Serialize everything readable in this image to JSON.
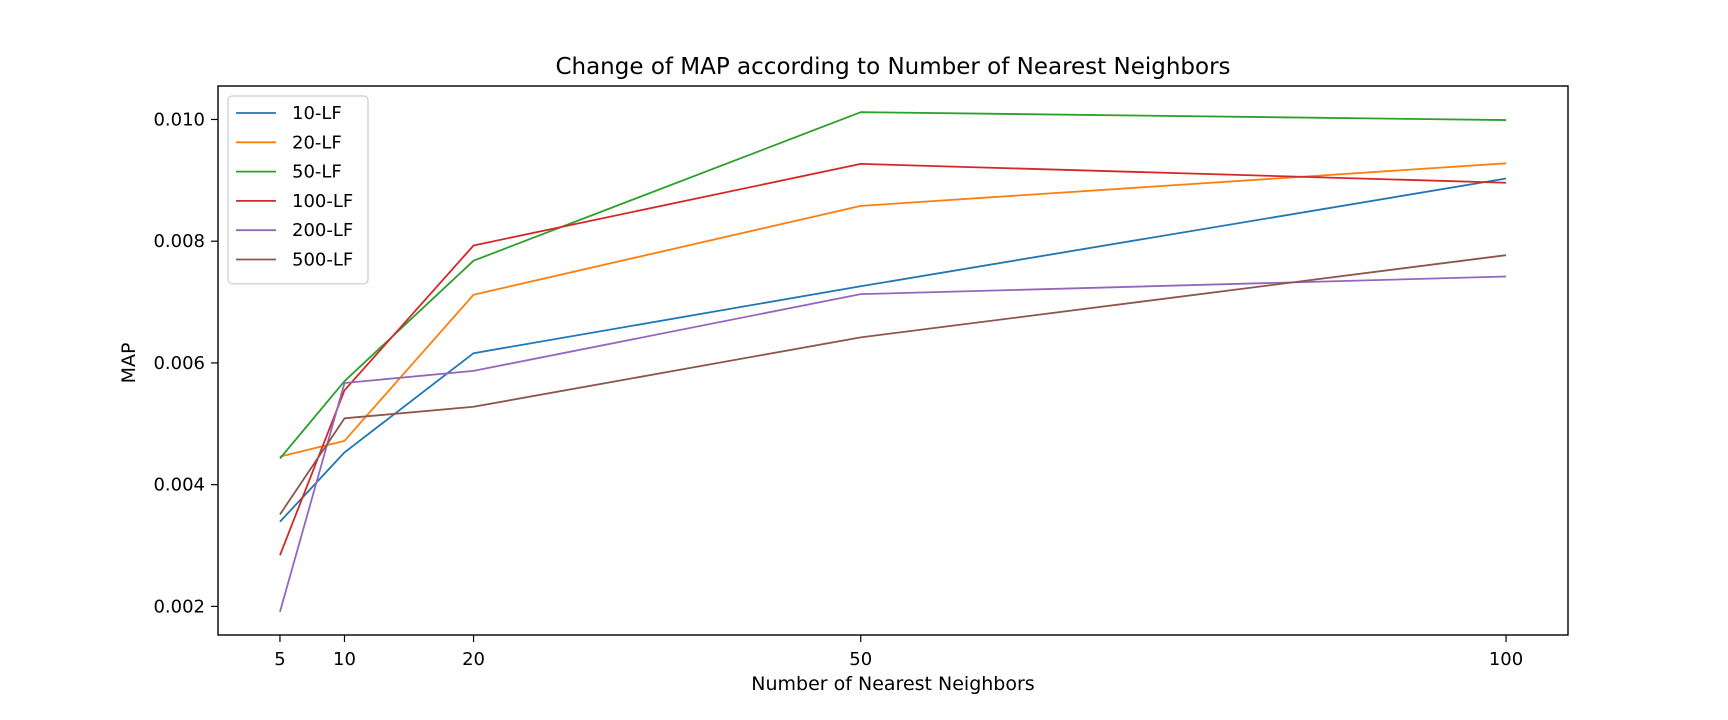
{
  "chart_data": {
    "type": "line",
    "title": "Change of MAP according to Number of Nearest Neighbors",
    "xlabel": "Number of Nearest Neighbors",
    "ylabel": "MAP",
    "x": [
      5,
      10,
      20,
      50,
      100
    ],
    "xticks": [
      5,
      10,
      20,
      50,
      100
    ],
    "xtick_labels": [
      "5",
      "10",
      "20",
      "50",
      "100"
    ],
    "yticks": [
      0.002,
      0.004,
      0.006,
      0.008,
      0.01
    ],
    "ytick_labels": [
      "0.002",
      "0.004",
      "0.006",
      "0.008",
      "0.010"
    ],
    "xlim": [
      0.2,
      104.8
    ],
    "ylim": [
      1.53,
      10.55
    ],
    "y_scale_factor": 0.001,
    "grid": false,
    "legend_position": "upper-left",
    "series": [
      {
        "name": "10-LF",
        "color": "#1f77b4",
        "values": [
          3.39,
          4.53,
          6.16,
          7.26,
          9.03
        ]
      },
      {
        "name": "20-LF",
        "color": "#ff7f0e",
        "values": [
          4.46,
          4.72,
          7.12,
          8.58,
          9.28
        ]
      },
      {
        "name": "50-LF",
        "color": "#2ca02c",
        "values": [
          4.43,
          5.7,
          7.68,
          10.12,
          9.99
        ]
      },
      {
        "name": "100-LF",
        "color": "#d62728",
        "values": [
          2.84,
          5.55,
          7.93,
          9.27,
          8.96
        ]
      },
      {
        "name": "200-LF",
        "color": "#9467bd",
        "values": [
          1.91,
          5.67,
          5.87,
          7.13,
          7.42
        ]
      },
      {
        "name": "500-LF",
        "color": "#8c564b",
        "values": [
          3.51,
          5.09,
          5.28,
          6.42,
          7.77
        ]
      }
    ]
  }
}
